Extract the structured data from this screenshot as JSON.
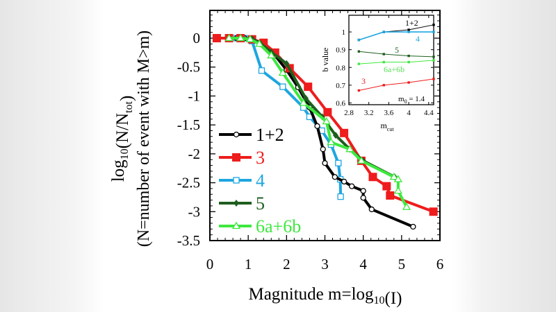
{
  "chart_data": [
    {
      "type": "line",
      "ylabel_line1": "log10(N/Ntot)",
      "ylabel_line2": "(N=number of event with M>m)",
      "xlabel": "Magnitude m=log10(I)",
      "xlim": [
        0,
        6
      ],
      "ylim": [
        -3.5,
        0.48
      ],
      "xticks": [
        "0",
        "1",
        "2",
        "3",
        "4",
        "5",
        "6"
      ],
      "yticks": [
        "0",
        "-0.5",
        "-1",
        "-1.5",
        "-2",
        "-2.5",
        "-3",
        "-3.5"
      ],
      "legend_position": "bottom-left",
      "series": [
        {
          "name": "1+2",
          "color": "#000000",
          "marker": "open-circle",
          "x": [
            0.5,
            0.7,
            0.9,
            1.1,
            1.4,
            1.7,
            2.0,
            2.3,
            2.6,
            2.8,
            2.95,
            3.0,
            3.26,
            3.5,
            3.7,
            4.0,
            4.0,
            4.22,
            5.3
          ],
          "y": [
            0,
            0,
            0,
            -0.03,
            -0.12,
            -0.3,
            -0.55,
            -0.85,
            -1.2,
            -1.52,
            -1.92,
            -2.16,
            -2.4,
            -2.48,
            -2.56,
            -2.64,
            -2.76,
            -2.96,
            -3.26
          ]
        },
        {
          "name": "3",
          "color": "#ee1c1c",
          "marker": "filled-square",
          "x": [
            0.18,
            0.5,
            0.8,
            1.1,
            1.4,
            1.7,
            2.08,
            2.56,
            3.07,
            3.5,
            3.95,
            4.25,
            4.61,
            4.7,
            5.83
          ],
          "y": [
            0,
            0,
            0,
            -0.02,
            -0.08,
            -0.25,
            -0.52,
            -0.84,
            -1.28,
            -1.64,
            -2.12,
            -2.4,
            -2.56,
            -2.72,
            -3.0
          ]
        },
        {
          "name": "4",
          "color": "#1ea6e0",
          "marker": "open-square",
          "x": [
            0.5,
            0.7,
            0.9,
            1.1,
            1.35,
            1.9,
            2.44,
            2.6,
            2.92,
            3.16,
            3.35,
            3.4,
            3.41
          ],
          "y": [
            0,
            0,
            0,
            -0.05,
            -0.56,
            -0.84,
            -1.2,
            -1.36,
            -1.6,
            -1.84,
            -2.16,
            -2.44,
            -2.74
          ]
        },
        {
          "name": "5",
          "color": "#1e5e1e",
          "marker": "filled-diamond",
          "x": [
            0.5,
            0.8,
            1.1,
            1.3,
            1.6,
            2.0,
            2.5,
            2.93,
            3.28,
            3.65,
            4.0,
            4.82
          ],
          "y": [
            0,
            0,
            -0.01,
            -0.08,
            -0.24,
            -0.44,
            -1.04,
            -1.36,
            -1.68,
            -1.92,
            -2.12,
            -2.4
          ]
        },
        {
          "name": "6a+6b",
          "color": "#3ee83e",
          "marker": "open-triangle",
          "x": [
            0.5,
            0.8,
            1.05,
            1.29,
            1.6,
            1.9,
            2.44,
            3.04,
            3.16,
            3.65,
            3.95,
            4.8,
            4.91,
            4.91,
            5.13
          ],
          "y": [
            0,
            0,
            -0.02,
            -0.1,
            -0.3,
            -0.6,
            -1.12,
            -1.44,
            -1.8,
            -1.92,
            -2.12,
            -2.4,
            -2.44,
            -2.64,
            -2.92
          ]
        }
      ]
    },
    {
      "type": "line",
      "xlabel": "m",
      "xlabel_sub": "cut",
      "ylabel": "b value",
      "xlim": [
        2.8,
        4.5
      ],
      "ylim": [
        0.59,
        1.094
      ],
      "xticks": [
        "2.8",
        "3.2",
        "3.6",
        "4",
        "4.4"
      ],
      "yticks": [
        "0.6",
        "0.7",
        "0.8",
        "0.9",
        "1"
      ],
      "annotation": {
        "text": "m",
        "sub": "0",
        "rest": " = 1.4"
      },
      "series": [
        {
          "name": "1+2",
          "color": "#000000",
          "x": [
            3.0,
            3.5,
            4.0,
            4.5
          ],
          "y": [
            0.955,
            1.0,
            1.012,
            1.04
          ]
        },
        {
          "name": "4",
          "color": "#1ea6e0",
          "x": [
            3.0,
            3.5,
            4.0,
            4.5
          ],
          "y": [
            0.955,
            1.0,
            1.0,
            1.0
          ]
        },
        {
          "name": "5",
          "color": "#1e5e1e",
          "x": [
            3.0,
            3.5,
            4.0,
            4.5
          ],
          "y": [
            0.89,
            0.875,
            0.865,
            0.86
          ]
        },
        {
          "name": "6a+6b",
          "color": "#3ee83e",
          "x": [
            3.0,
            3.5,
            4.0,
            4.5
          ],
          "y": [
            0.82,
            0.83,
            0.83,
            0.84
          ]
        },
        {
          "name": "3",
          "color": "#ee1c1c",
          "x": [
            3.0,
            3.5,
            4.0,
            4.5
          ],
          "y": [
            0.67,
            0.7,
            0.715,
            0.735
          ]
        }
      ]
    }
  ]
}
